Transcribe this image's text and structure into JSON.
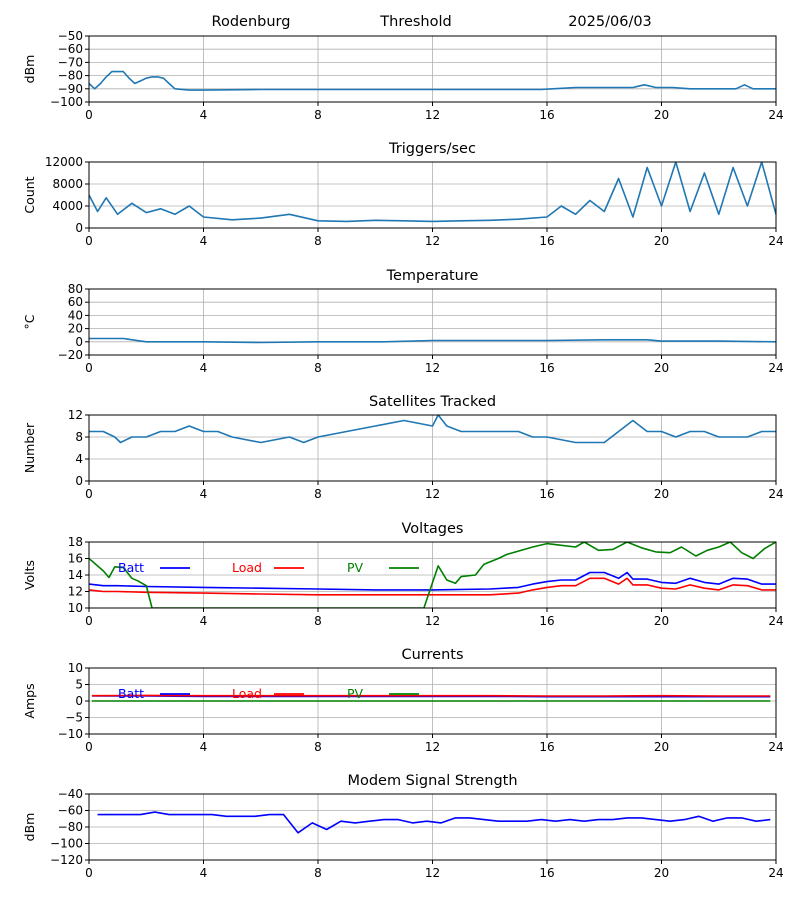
{
  "header": {
    "site": "Rodenburg",
    "mode": "Threshold",
    "date": "2025/06/03"
  },
  "colors": {
    "default": "#1f77b4",
    "batt": "#0000ff",
    "load": "#ff0000",
    "pv": "#008000",
    "grid": "#b0b0b0"
  },
  "chart_data": [
    {
      "id": "signal",
      "type": "line",
      "title": "",
      "ylabel": "dBm",
      "xlim": [
        0,
        24
      ],
      "ylim": [
        -100,
        -50
      ],
      "xticks": [
        0,
        4,
        8,
        12,
        16,
        20,
        24
      ],
      "yticks": [
        -100,
        -90,
        -80,
        -70,
        -60,
        -50
      ],
      "grid": true,
      "series": [
        {
          "color": "#1f77b4",
          "x": [
            0,
            0.2,
            0.4,
            0.6,
            0.8,
            1.0,
            1.2,
            1.4,
            1.6,
            1.8,
            2.0,
            2.2,
            2.4,
            2.6,
            2.8,
            3.0,
            3.5,
            4.0,
            6.0,
            8.0,
            10.0,
            12.0,
            14.0,
            15.8,
            16.2,
            17.0,
            18.0,
            19.0,
            19.4,
            19.8,
            20.4,
            21.0,
            22.0,
            22.6,
            22.9,
            23.2,
            23.6,
            24.0
          ],
          "y": [
            -86,
            -90,
            -86,
            -81,
            -77,
            -77,
            -77,
            -82,
            -86,
            -84,
            -82,
            -81,
            -81,
            -82,
            -86,
            -90,
            -91,
            -91,
            -90.5,
            -90.5,
            -90.5,
            -90.5,
            -90.5,
            -90.5,
            -90,
            -89,
            -89,
            -89,
            -87,
            -89,
            -89,
            -90,
            -90,
            -90,
            -87,
            -90,
            -90,
            -90
          ]
        }
      ]
    },
    {
      "id": "triggers",
      "type": "line",
      "title": "Triggers/sec",
      "ylabel": "Count",
      "xlim": [
        0,
        24
      ],
      "ylim": [
        0,
        12000
      ],
      "xticks": [
        0,
        4,
        8,
        12,
        16,
        20,
        24
      ],
      "yticks": [
        0,
        4000,
        8000,
        12000
      ],
      "grid": true,
      "series": [
        {
          "color": "#1f77b4",
          "x": [
            0,
            0.3,
            0.6,
            1.0,
            1.5,
            2.0,
            2.5,
            3.0,
            3.5,
            4.0,
            5.0,
            6.0,
            7.0,
            8.0,
            9.0,
            10.0,
            11.0,
            12.0,
            13.0,
            14.0,
            15.0,
            16.0,
            16.5,
            17.0,
            17.5,
            18.0,
            18.5,
            19.0,
            19.5,
            20.0,
            20.5,
            21.0,
            21.5,
            22.0,
            22.5,
            23.0,
            23.5,
            24.0
          ],
          "y": [
            6000,
            3000,
            5500,
            2500,
            4500,
            2800,
            3500,
            2500,
            4000,
            2000,
            1500,
            1800,
            2500,
            1300,
            1200,
            1400,
            1300,
            1200,
            1300,
            1400,
            1600,
            2000,
            4000,
            2500,
            5000,
            3000,
            9000,
            2000,
            11000,
            4000,
            12000,
            3000,
            10000,
            2500,
            11000,
            4000,
            12000,
            2500
          ]
        }
      ]
    },
    {
      "id": "temperature",
      "type": "line",
      "title": "Temperature",
      "ylabel": "°C",
      "xlim": [
        0,
        24
      ],
      "ylim": [
        -20,
        80
      ],
      "xticks": [
        0,
        4,
        8,
        12,
        16,
        20,
        24
      ],
      "yticks": [
        -20,
        0,
        20,
        40,
        60,
        80
      ],
      "grid": true,
      "series": [
        {
          "color": "#1f77b4",
          "x": [
            0,
            1.2,
            2.0,
            4.0,
            6.0,
            8.0,
            10.3,
            12.0,
            14.0,
            16.0,
            18.0,
            19.5,
            20.0,
            22.0,
            24.0
          ],
          "y": [
            5,
            5,
            0,
            0,
            -1,
            0,
            0,
            2,
            2,
            2,
            3,
            3,
            1,
            1,
            0
          ]
        }
      ]
    },
    {
      "id": "satellites",
      "type": "line",
      "title": "Satellites Tracked",
      "ylabel": "Number",
      "xlim": [
        0,
        24
      ],
      "ylim": [
        0,
        12
      ],
      "xticks": [
        0,
        4,
        8,
        12,
        16,
        20,
        24
      ],
      "yticks": [
        0,
        4,
        8,
        12
      ],
      "grid": true,
      "series": [
        {
          "color": "#1f77b4",
          "x": [
            0,
            0.5,
            0.9,
            1.1,
            1.5,
            2.0,
            2.5,
            3.0,
            3.5,
            4.0,
            4.5,
            5.0,
            6.0,
            7.0,
            7.5,
            8.0,
            9.0,
            10.0,
            11.0,
            12.0,
            12.2,
            12.5,
            13.0,
            14.0,
            15.0,
            15.5,
            16.0,
            17.0,
            18.0,
            18.5,
            19.0,
            19.5,
            20.0,
            20.5,
            21.0,
            21.5,
            22.0,
            23.0,
            23.5,
            24.0
          ],
          "y": [
            9,
            9,
            8,
            7,
            8,
            8,
            9,
            9,
            10,
            9,
            9,
            8,
            7,
            8,
            7,
            8,
            9,
            10,
            11,
            10,
            12,
            10,
            9,
            9,
            9,
            8,
            8,
            7,
            7,
            9,
            11,
            9,
            9,
            8,
            9,
            9,
            8,
            8,
            9,
            9
          ]
        }
      ]
    },
    {
      "id": "voltages",
      "type": "line",
      "title": "Voltages",
      "ylabel": "Volts",
      "xlim": [
        0,
        24
      ],
      "ylim": [
        10,
        18
      ],
      "xticks": [
        0,
        4,
        8,
        12,
        16,
        20,
        24
      ],
      "yticks": [
        10,
        12,
        14,
        16,
        18
      ],
      "grid": true,
      "legend": "top-left",
      "series": [
        {
          "name": "Batt",
          "color": "#0000ff",
          "x": [
            0,
            0.5,
            1,
            2,
            4,
            6,
            8,
            10,
            12,
            14,
            15,
            15.5,
            16,
            16.5,
            17,
            17.5,
            18,
            18.5,
            18.8,
            19,
            19.5,
            20,
            20.5,
            21,
            21.5,
            22,
            22.5,
            23,
            23.5,
            24
          ],
          "y": [
            12.9,
            12.7,
            12.7,
            12.6,
            12.5,
            12.4,
            12.3,
            12.2,
            12.2,
            12.3,
            12.5,
            12.9,
            13.2,
            13.4,
            13.4,
            14.3,
            14.3,
            13.6,
            14.3,
            13.5,
            13.5,
            13.1,
            13.0,
            13.6,
            13.1,
            12.9,
            13.6,
            13.5,
            12.9,
            12.9
          ]
        },
        {
          "name": "Load",
          "color": "#ff0000",
          "x": [
            0,
            0.5,
            1,
            2,
            4,
            6,
            8,
            10,
            12,
            14,
            15,
            15.5,
            16,
            16.5,
            17,
            17.5,
            18,
            18.5,
            18.8,
            19,
            19.5,
            20,
            20.5,
            21,
            21.5,
            22,
            22.5,
            23,
            23.5,
            24
          ],
          "y": [
            12.2,
            12.0,
            12.0,
            11.9,
            11.8,
            11.7,
            11.6,
            11.6,
            11.6,
            11.6,
            11.8,
            12.2,
            12.5,
            12.7,
            12.7,
            13.6,
            13.6,
            12.9,
            13.6,
            12.8,
            12.8,
            12.4,
            12.3,
            12.8,
            12.4,
            12.2,
            12.8,
            12.7,
            12.2,
            12.2
          ]
        },
        {
          "name": "PV",
          "color": "#008000",
          "x": [
            0,
            0.5,
            0.7,
            0.9,
            1.2,
            1.5,
            1.7,
            2.0,
            2.2,
            11.7,
            12.2,
            12.5,
            12.8,
            13.0,
            13.5,
            13.8,
            14.3,
            14.6,
            15.0,
            15.5,
            16.0,
            16.5,
            17.0,
            17.3,
            17.8,
            18.3,
            18.8,
            19.3,
            19.8,
            20.3,
            20.7,
            21.2,
            21.6,
            22.0,
            22.4,
            22.8,
            23.2,
            23.6,
            24.0
          ],
          "y": [
            16,
            14.5,
            13.7,
            15.0,
            14.9,
            13.6,
            13.3,
            12.7,
            10,
            10,
            15.1,
            13.4,
            13.0,
            13.8,
            14.0,
            15.3,
            16.0,
            16.5,
            16.9,
            17.4,
            17.8,
            17.6,
            17.4,
            18,
            17.0,
            17.1,
            18,
            17.3,
            16.8,
            16.7,
            17.4,
            16.3,
            17.0,
            17.4,
            18,
            16.7,
            16.0,
            17.2,
            18
          ]
        }
      ]
    },
    {
      "id": "currents",
      "type": "line",
      "title": "Currents",
      "ylabel": "Amps",
      "xlim": [
        0,
        24
      ],
      "ylim": [
        -10,
        10
      ],
      "xticks": [
        0,
        4,
        8,
        12,
        16,
        20,
        24
      ],
      "yticks": [
        -10,
        -5,
        0,
        5,
        10
      ],
      "grid": true,
      "legend": "top-left",
      "series": [
        {
          "name": "Batt",
          "color": "#0000ff",
          "x": [
            0.1,
            2,
            4,
            6,
            8,
            10,
            12,
            14,
            16,
            18,
            20,
            22,
            23.8
          ],
          "y": [
            1.5,
            1.5,
            1.4,
            1.4,
            1.4,
            1.4,
            1.4,
            1.4,
            1.3,
            1.3,
            1.3,
            1.3,
            1.3
          ]
        },
        {
          "name": "Load",
          "color": "#ff0000",
          "x": [
            0.1,
            2,
            4,
            6,
            8,
            10,
            12,
            14,
            16,
            18,
            20,
            22,
            23.8
          ],
          "y": [
            1.6,
            1.7,
            1.6,
            1.6,
            1.6,
            1.6,
            1.6,
            1.6,
            1.5,
            1.5,
            1.6,
            1.5,
            1.5
          ]
        },
        {
          "name": "PV",
          "color": "#008000",
          "x": [
            0.1,
            23.8
          ],
          "y": [
            0,
            0
          ]
        }
      ]
    },
    {
      "id": "modem",
      "type": "line",
      "title": "Modem Signal Strength",
      "ylabel": "dBm",
      "xlim": [
        0,
        24
      ],
      "ylim": [
        -120,
        -40
      ],
      "xticks": [
        0,
        4,
        8,
        12,
        16,
        20,
        24
      ],
      "yticks": [
        -120,
        -100,
        -80,
        -60,
        -40
      ],
      "grid": true,
      "series": [
        {
          "color": "#0000ff",
          "x": [
            0.3,
            0.8,
            1.3,
            1.8,
            2.3,
            2.8,
            3.3,
            3.8,
            4.3,
            4.8,
            5.3,
            5.8,
            6.3,
            6.8,
            7.3,
            7.8,
            8.3,
            8.8,
            9.3,
            9.8,
            10.3,
            10.8,
            11.3,
            11.8,
            12.3,
            12.8,
            13.3,
            13.8,
            14.3,
            14.8,
            15.3,
            15.8,
            16.3,
            16.8,
            17.3,
            17.8,
            18.3,
            18.8,
            19.3,
            19.8,
            20.3,
            20.8,
            21.3,
            21.8,
            22.3,
            22.8,
            23.3,
            23.8
          ],
          "y": [
            -65,
            -65,
            -65,
            -65,
            -62,
            -65,
            -65,
            -65,
            -65,
            -67,
            -67,
            -67,
            -65,
            -65,
            -87,
            -75,
            -83,
            -73,
            -75,
            -73,
            -71,
            -71,
            -75,
            -73,
            -75,
            -69,
            -69,
            -71,
            -73,
            -73,
            -73,
            -71,
            -73,
            -71,
            -73,
            -71,
            -71,
            -69,
            -69,
            -71,
            -73,
            -71,
            -67,
            -73,
            -69,
            -69,
            -73,
            -71
          ]
        }
      ]
    }
  ]
}
